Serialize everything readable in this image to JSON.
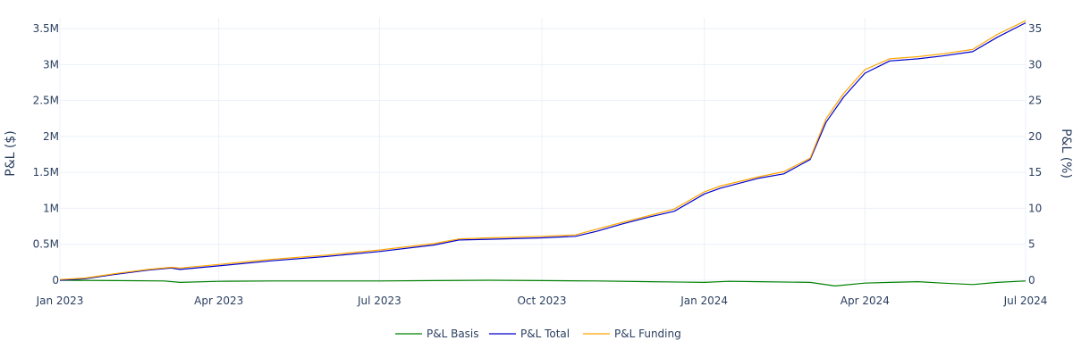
{
  "chart_data": {
    "type": "line",
    "title": "",
    "xlabel": "",
    "ylabel_left": "P&L ($)",
    "ylabel_right": "P&L (%)",
    "xlim": [
      "2023-01-01",
      "2024-07-01"
    ],
    "ylim_left": [
      -50000,
      3650000
    ],
    "ylim_right": [
      -0.5,
      36.5
    ],
    "grid": true,
    "legend_position": "bottom-center",
    "x_ticks": [
      {
        "date": "2023-01-01",
        "label": "Jan 2023"
      },
      {
        "date": "2023-04-01",
        "label": "Apr 2023"
      },
      {
        "date": "2023-07-01",
        "label": "Jul 2023"
      },
      {
        "date": "2023-10-01",
        "label": "Oct 2023"
      },
      {
        "date": "2024-01-01",
        "label": "Jan 2024"
      },
      {
        "date": "2024-04-01",
        "label": "Apr 2024"
      },
      {
        "date": "2024-07-01",
        "label": "Jul 2024"
      }
    ],
    "y_ticks_left": [
      {
        "value": 0,
        "label": "0"
      },
      {
        "value": 500000,
        "label": "0.5M"
      },
      {
        "value": 1000000,
        "label": "1M"
      },
      {
        "value": 1500000,
        "label": "1.5M"
      },
      {
        "value": 2000000,
        "label": "2M"
      },
      {
        "value": 2500000,
        "label": "2.5M"
      },
      {
        "value": 3000000,
        "label": "3M"
      },
      {
        "value": 3500000,
        "label": "3.5M"
      }
    ],
    "y_ticks_right": [
      {
        "value": 0,
        "label": "0"
      },
      {
        "value": 5,
        "label": "5"
      },
      {
        "value": 10,
        "label": "10"
      },
      {
        "value": 15,
        "label": "15"
      },
      {
        "value": 20,
        "label": "20"
      },
      {
        "value": 25,
        "label": "25"
      },
      {
        "value": 30,
        "label": "30"
      },
      {
        "value": 35,
        "label": "35"
      }
    ],
    "series": [
      {
        "name": "P&L Basis",
        "color": "#008000",
        "x": [
          "2023-01-01",
          "2023-02-01",
          "2023-03-01",
          "2023-03-10",
          "2023-04-01",
          "2023-05-01",
          "2023-06-01",
          "2023-07-01",
          "2023-08-01",
          "2023-09-01",
          "2023-10-01",
          "2023-11-01",
          "2023-12-01",
          "2024-01-01",
          "2024-01-15",
          "2024-02-01",
          "2024-03-01",
          "2024-03-15",
          "2024-04-01",
          "2024-04-15",
          "2024-05-01",
          "2024-05-15",
          "2024-06-01",
          "2024-06-15",
          "2024-07-01"
        ],
        "y": [
          0,
          -5000,
          -10000,
          -30000,
          -15000,
          -10000,
          -10000,
          -10000,
          -5000,
          0,
          -5000,
          -10000,
          -20000,
          -30000,
          -15000,
          -20000,
          -30000,
          -80000,
          -40000,
          -30000,
          -20000,
          -40000,
          -60000,
          -30000,
          -10000
        ]
      },
      {
        "name": "P&L Total",
        "color": "#0000cd",
        "x": [
          "2023-01-01",
          "2023-01-15",
          "2023-02-01",
          "2023-02-20",
          "2023-03-05",
          "2023-03-10",
          "2023-04-01",
          "2023-05-01",
          "2023-06-01",
          "2023-07-01",
          "2023-08-01",
          "2023-08-15",
          "2023-09-01",
          "2023-10-01",
          "2023-10-20",
          "2023-11-01",
          "2023-11-15",
          "2023-12-01",
          "2023-12-15",
          "2024-01-01",
          "2024-01-10",
          "2024-02-01",
          "2024-02-15",
          "2024-03-01",
          "2024-03-10",
          "2024-03-20",
          "2024-04-01",
          "2024-04-15",
          "2024-05-01",
          "2024-05-15",
          "2024-06-01",
          "2024-06-15",
          "2024-07-01"
        ],
        "y": [
          0,
          20000,
          80000,
          140000,
          170000,
          150000,
          200000,
          270000,
          330000,
          400000,
          490000,
          560000,
          570000,
          590000,
          610000,
          680000,
          780000,
          880000,
          960000,
          1200000,
          1280000,
          1420000,
          1480000,
          1680000,
          2200000,
          2550000,
          2880000,
          3050000,
          3080000,
          3120000,
          3180000,
          3380000,
          3580000
        ]
      },
      {
        "name": "P&L Funding",
        "color": "#ffa500",
        "x": [
          "2023-01-01",
          "2023-01-15",
          "2023-02-01",
          "2023-02-20",
          "2023-03-05",
          "2023-03-10",
          "2023-04-01",
          "2023-05-01",
          "2023-06-01",
          "2023-07-01",
          "2023-08-01",
          "2023-08-15",
          "2023-09-01",
          "2023-10-01",
          "2023-10-20",
          "2023-11-01",
          "2023-11-15",
          "2023-12-01",
          "2023-12-15",
          "2024-01-01",
          "2024-01-10",
          "2024-02-01",
          "2024-02-15",
          "2024-03-01",
          "2024-03-10",
          "2024-03-20",
          "2024-04-01",
          "2024-04-15",
          "2024-05-01",
          "2024-05-15",
          "2024-06-01",
          "2024-06-15",
          "2024-07-01"
        ],
        "y": [
          10000,
          30000,
          90000,
          150000,
          180000,
          170000,
          220000,
          290000,
          350000,
          420000,
          510000,
          575000,
          590000,
          610000,
          630000,
          710000,
          800000,
          900000,
          990000,
          1230000,
          1310000,
          1440000,
          1510000,
          1700000,
          2250000,
          2600000,
          2930000,
          3080000,
          3110000,
          3150000,
          3210000,
          3420000,
          3610000
        ]
      }
    ]
  }
}
